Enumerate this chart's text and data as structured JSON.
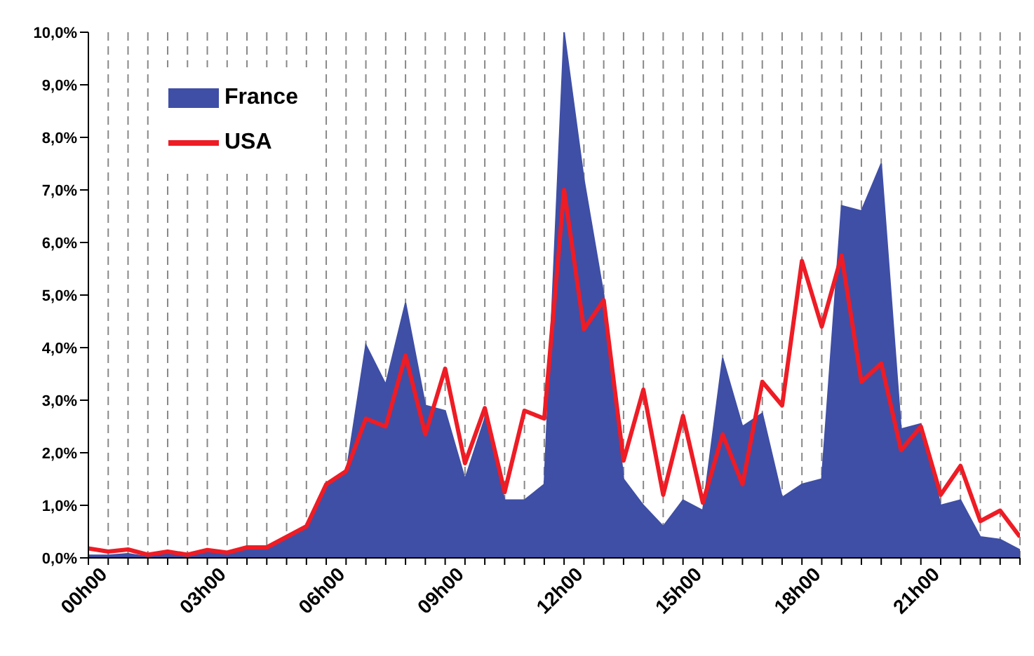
{
  "chart_data": {
    "type": "area",
    "categories": [
      "00h00",
      null,
      null,
      null,
      null,
      null,
      "03h00",
      null,
      null,
      null,
      null,
      null,
      "06h00",
      null,
      null,
      null,
      null,
      null,
      "09h00",
      null,
      null,
      null,
      null,
      null,
      "12h00",
      null,
      null,
      null,
      null,
      null,
      "15h00",
      null,
      null,
      null,
      null,
      null,
      "18h00",
      null,
      null,
      null,
      null,
      null,
      "21h00",
      null,
      null,
      null,
      null,
      null
    ],
    "series": [
      {
        "name": "France",
        "color": "#3f4fa6",
        "values": [
          0.05,
          0.05,
          0.08,
          0.02,
          0.1,
          0.05,
          0.12,
          0.1,
          0.2,
          0.2,
          0.4,
          0.55,
          1.35,
          1.6,
          4.05,
          3.3,
          4.85,
          2.9,
          2.8,
          1.5,
          2.65,
          1.1,
          1.1,
          1.4,
          10.0,
          7.2,
          5.0,
          1.5,
          1.0,
          0.6,
          1.1,
          0.9,
          3.8,
          2.5,
          2.75,
          1.15,
          1.4,
          1.5,
          6.7,
          6.6,
          7.5,
          2.45,
          2.55,
          1.0,
          1.1,
          0.4,
          0.35,
          0.15
        ]
      },
      {
        "name": "USA",
        "type": "line",
        "color": "#ee1c25",
        "values": [
          0.18,
          0.12,
          0.16,
          0.06,
          0.12,
          0.06,
          0.15,
          0.1,
          0.2,
          0.2,
          0.4,
          0.6,
          1.4,
          1.65,
          2.65,
          2.5,
          3.85,
          2.35,
          3.6,
          1.8,
          2.85,
          1.25,
          2.8,
          2.65,
          7.0,
          4.35,
          4.9,
          1.85,
          3.2,
          1.2,
          2.7,
          1.05,
          2.35,
          1.4,
          3.35,
          2.9,
          5.65,
          4.4,
          5.75,
          3.35,
          3.7,
          2.05,
          2.5,
          1.2,
          1.75,
          0.7,
          0.9,
          0.4
        ]
      }
    ],
    "ylim": [
      0,
      10
    ],
    "yticks": [
      {
        "value": 0,
        "label": "0,0%"
      },
      {
        "value": 1,
        "label": "1,0%"
      },
      {
        "value": 2,
        "label": "2,0%"
      },
      {
        "value": 3,
        "label": "3,0%"
      },
      {
        "value": 4,
        "label": "4,0%"
      },
      {
        "value": 5,
        "label": "5,0%"
      },
      {
        "value": 6,
        "label": "6,0%"
      },
      {
        "value": 7,
        "label": "7,0%"
      },
      {
        "value": 8,
        "label": "8,0%"
      },
      {
        "value": 9,
        "label": "9,0%"
      },
      {
        "value": 10,
        "label": "10,0%"
      }
    ],
    "grid": "x",
    "legend": "top left"
  }
}
